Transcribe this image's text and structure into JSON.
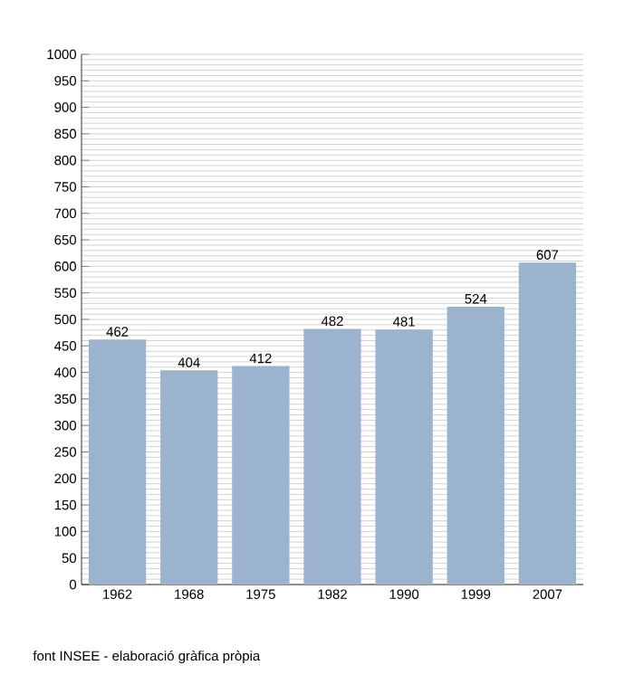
{
  "chart_data": {
    "type": "bar",
    "categories": [
      "1962",
      "1968",
      "1975",
      "1982",
      "1990",
      "1999",
      "2007"
    ],
    "values": [
      462,
      404,
      412,
      482,
      481,
      524,
      607
    ],
    "color": "#9bb3cc",
    "ylim": [
      0,
      1000
    ],
    "yticks": [
      0,
      50,
      100,
      150,
      200,
      250,
      300,
      350,
      400,
      450,
      500,
      550,
      600,
      650,
      700,
      750,
      800,
      850,
      900,
      950,
      1000
    ],
    "grid": "y",
    "data_labels": true,
    "annotations": [
      "font INSEE - elaboració gràfica pròpia"
    ]
  }
}
